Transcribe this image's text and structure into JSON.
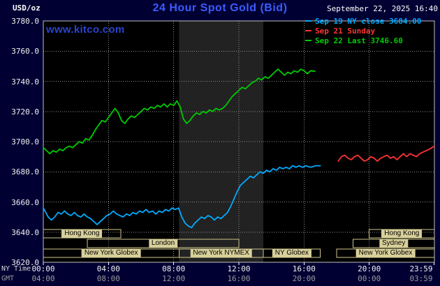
{
  "header": {
    "unit_label": "USD/oz",
    "title": "24 Hour Spot Gold (Bid)",
    "datetime": "September 22, 2025 16:40"
  },
  "watermark": "www.kitco.com",
  "colors": {
    "background": "#000033",
    "plot_bg": "#000000",
    "nymex_band": "#222222",
    "grid": "#8c8c8c",
    "border": "#c0c0c0",
    "session_box": "#cfc68b",
    "session_chip": "#d8d09a",
    "title": "#3b5cff",
    "watermark": "#2a43cf",
    "cyan_series": "#00aaff",
    "red_series": "#ff3333",
    "green_series": "#00cc00"
  },
  "legend": [
    {
      "id": "sep19",
      "label": "Sep 19 NY close 3684.00",
      "color": "#00aaff"
    },
    {
      "id": "sep21",
      "label": "Sep 21 Sunday",
      "color": "#ff3333"
    },
    {
      "id": "sep22",
      "label": "Sep 22 Last 3746.60",
      "color": "#00cc00"
    }
  ],
  "axes": {
    "x_label_primary": "NY Time",
    "x_label_secondary": "GMT",
    "x_ticks": [
      {
        "hour": 0,
        "label": "00:00",
        "gmt": "04:00"
      },
      {
        "hour": 4,
        "label": "04:00",
        "gmt": "08:00"
      },
      {
        "hour": 8,
        "label": "08:00",
        "gmt": "12:00"
      },
      {
        "hour": 12,
        "label": "12:00",
        "gmt": "16:00"
      },
      {
        "hour": 16,
        "label": "16:00",
        "gmt": "20:00"
      },
      {
        "hour": 20,
        "label": "20:00",
        "gmt": "00:00"
      },
      {
        "hour": 23.983,
        "label": "23:59",
        "gmt": "03:59"
      }
    ],
    "y_ticks": [
      {
        "value": 3620,
        "label": "3620.0"
      },
      {
        "value": 3640,
        "label": "3640.0"
      },
      {
        "value": 3660,
        "label": "3660.0"
      },
      {
        "value": 3680,
        "label": "3680.0"
      },
      {
        "value": 3700,
        "label": "3700.0"
      },
      {
        "value": 3720,
        "label": "3720.0"
      },
      {
        "value": 3740,
        "label": "3740.0"
      },
      {
        "value": 3760,
        "label": "3760.0"
      },
      {
        "value": 3780,
        "label": "3780.0"
      }
    ]
  },
  "sessions": [
    {
      "row": 0,
      "start_hour": 0,
      "end_hour": 4.75,
      "label": "Hong Kong"
    },
    {
      "row": 0,
      "start_hour": 20,
      "end_hour": 24,
      "label": "Hong Kong"
    },
    {
      "row": 1,
      "start_hour": 2.7,
      "end_hour": 12,
      "label": "London"
    },
    {
      "row": 1,
      "start_hour": 19,
      "end_hour": 24,
      "label": "Sydney"
    },
    {
      "row": 2,
      "start_hour": 0,
      "end_hour": 8.33,
      "label": "New York Globex"
    },
    {
      "row": 2,
      "start_hour": 8.33,
      "end_hour": 13.5,
      "label": "New York NYMEX"
    },
    {
      "row": 2,
      "start_hour": 13.5,
      "end_hour": 17,
      "label": "NY Globex"
    },
    {
      "row": 2,
      "start_hour": 18,
      "end_hour": 24,
      "label": "New York Globex"
    }
  ],
  "chart_data": {
    "type": "line",
    "title": "24 Hour Spot Gold (Bid)",
    "xlabel": "NY Time (hours, 00:00-23:59)",
    "ylabel": "USD/oz",
    "x_range_hours": [
      0,
      24
    ],
    "ylim": [
      3620,
      3780
    ],
    "grid": true,
    "legend_position": "top-right",
    "highlight_band_hours": [
      8.33,
      13.5
    ],
    "series": [
      {
        "id": "sep19",
        "name": "Sep 19 NY close 3684.00",
        "color": "#00aaff",
        "points": [
          [
            0.0,
            3656
          ],
          [
            0.15,
            3653
          ],
          [
            0.3,
            3650
          ],
          [
            0.5,
            3648
          ],
          [
            0.7,
            3650
          ],
          [
            0.9,
            3653
          ],
          [
            1.1,
            3652
          ],
          [
            1.3,
            3654
          ],
          [
            1.5,
            3652
          ],
          [
            1.7,
            3651
          ],
          [
            1.9,
            3653
          ],
          [
            2.1,
            3651
          ],
          [
            2.3,
            3650
          ],
          [
            2.5,
            3652
          ],
          [
            2.7,
            3650
          ],
          [
            2.9,
            3649
          ],
          [
            3.1,
            3647
          ],
          [
            3.3,
            3645
          ],
          [
            3.5,
            3647
          ],
          [
            3.7,
            3649
          ],
          [
            3.9,
            3651
          ],
          [
            4.1,
            3652
          ],
          [
            4.3,
            3654
          ],
          [
            4.5,
            3652
          ],
          [
            4.7,
            3651
          ],
          [
            4.9,
            3650
          ],
          [
            5.1,
            3652
          ],
          [
            5.3,
            3651
          ],
          [
            5.5,
            3653
          ],
          [
            5.7,
            3652
          ],
          [
            5.9,
            3654
          ],
          [
            6.1,
            3653
          ],
          [
            6.3,
            3655
          ],
          [
            6.5,
            3653
          ],
          [
            6.7,
            3654
          ],
          [
            6.9,
            3652
          ],
          [
            7.1,
            3654
          ],
          [
            7.3,
            3653
          ],
          [
            7.5,
            3655
          ],
          [
            7.7,
            3654
          ],
          [
            7.9,
            3656
          ],
          [
            8.1,
            3655
          ],
          [
            8.3,
            3656
          ],
          [
            8.5,
            3650
          ],
          [
            8.7,
            3646
          ],
          [
            8.9,
            3644
          ],
          [
            9.1,
            3643
          ],
          [
            9.3,
            3646
          ],
          [
            9.5,
            3648
          ],
          [
            9.7,
            3650
          ],
          [
            9.9,
            3649
          ],
          [
            10.1,
            3651
          ],
          [
            10.3,
            3650
          ],
          [
            10.5,
            3648
          ],
          [
            10.7,
            3650
          ],
          [
            10.9,
            3649
          ],
          [
            11.1,
            3651
          ],
          [
            11.3,
            3653
          ],
          [
            11.5,
            3657
          ],
          [
            11.7,
            3662
          ],
          [
            11.9,
            3667
          ],
          [
            12.1,
            3671
          ],
          [
            12.3,
            3673
          ],
          [
            12.5,
            3675
          ],
          [
            12.7,
            3677
          ],
          [
            12.9,
            3676
          ],
          [
            13.1,
            3678
          ],
          [
            13.3,
            3680
          ],
          [
            13.5,
            3679
          ],
          [
            13.7,
            3681
          ],
          [
            13.9,
            3680
          ],
          [
            14.1,
            3682
          ],
          [
            14.3,
            3681
          ],
          [
            14.5,
            3683
          ],
          [
            14.7,
            3682
          ],
          [
            14.9,
            3683
          ],
          [
            15.1,
            3682
          ],
          [
            15.3,
            3684
          ],
          [
            15.5,
            3683
          ],
          [
            15.7,
            3684
          ],
          [
            15.9,
            3683
          ],
          [
            16.1,
            3684
          ],
          [
            16.4,
            3683
          ],
          [
            16.7,
            3684
          ],
          [
            17.0,
            3684
          ]
        ]
      },
      {
        "id": "sep21",
        "name": "Sep 21 Sunday",
        "color": "#ff3333",
        "points": [
          [
            18.1,
            3687
          ],
          [
            18.3,
            3690
          ],
          [
            18.5,
            3691
          ],
          [
            18.7,
            3689
          ],
          [
            18.9,
            3688
          ],
          [
            19.1,
            3690
          ],
          [
            19.3,
            3691
          ],
          [
            19.5,
            3689
          ],
          [
            19.7,
            3687
          ],
          [
            19.9,
            3688
          ],
          [
            20.1,
            3690
          ],
          [
            20.3,
            3689
          ],
          [
            20.5,
            3687
          ],
          [
            20.7,
            3689
          ],
          [
            20.9,
            3690
          ],
          [
            21.1,
            3691
          ],
          [
            21.3,
            3689
          ],
          [
            21.5,
            3690
          ],
          [
            21.7,
            3688
          ],
          [
            21.9,
            3690
          ],
          [
            22.1,
            3692
          ],
          [
            22.3,
            3690
          ],
          [
            22.5,
            3692
          ],
          [
            22.7,
            3691
          ],
          [
            22.9,
            3690
          ],
          [
            23.1,
            3692
          ],
          [
            23.3,
            3693
          ],
          [
            23.5,
            3694
          ],
          [
            23.7,
            3695
          ],
          [
            23.85,
            3696
          ],
          [
            23.98,
            3697
          ]
        ]
      },
      {
        "id": "sep22",
        "name": "Sep 22 Last 3746.60",
        "color": "#00cc00",
        "points": [
          [
            0.0,
            3696
          ],
          [
            0.2,
            3694
          ],
          [
            0.4,
            3692
          ],
          [
            0.6,
            3694
          ],
          [
            0.8,
            3693
          ],
          [
            1.0,
            3695
          ],
          [
            1.2,
            3694
          ],
          [
            1.4,
            3696
          ],
          [
            1.6,
            3697
          ],
          [
            1.8,
            3696
          ],
          [
            2.0,
            3698
          ],
          [
            2.2,
            3700
          ],
          [
            2.4,
            3699
          ],
          [
            2.6,
            3702
          ],
          [
            2.8,
            3701
          ],
          [
            3.0,
            3704
          ],
          [
            3.2,
            3708
          ],
          [
            3.4,
            3711
          ],
          [
            3.6,
            3714
          ],
          [
            3.8,
            3713
          ],
          [
            4.0,
            3716
          ],
          [
            4.2,
            3719
          ],
          [
            4.4,
            3722
          ],
          [
            4.6,
            3719
          ],
          [
            4.8,
            3714
          ],
          [
            5.0,
            3712
          ],
          [
            5.2,
            3715
          ],
          [
            5.4,
            3717
          ],
          [
            5.6,
            3716
          ],
          [
            5.8,
            3718
          ],
          [
            6.0,
            3720
          ],
          [
            6.2,
            3722
          ],
          [
            6.4,
            3721
          ],
          [
            6.6,
            3723
          ],
          [
            6.8,
            3722
          ],
          [
            7.0,
            3724
          ],
          [
            7.2,
            3723
          ],
          [
            7.4,
            3725
          ],
          [
            7.6,
            3723
          ],
          [
            7.8,
            3725
          ],
          [
            8.0,
            3724
          ],
          [
            8.2,
            3727
          ],
          [
            8.4,
            3723
          ],
          [
            8.6,
            3715
          ],
          [
            8.8,
            3712
          ],
          [
            9.0,
            3714
          ],
          [
            9.2,
            3717
          ],
          [
            9.4,
            3719
          ],
          [
            9.6,
            3718
          ],
          [
            9.8,
            3720
          ],
          [
            10.0,
            3719
          ],
          [
            10.2,
            3721
          ],
          [
            10.4,
            3720
          ],
          [
            10.6,
            3722
          ],
          [
            10.8,
            3721
          ],
          [
            11.0,
            3722
          ],
          [
            11.2,
            3724
          ],
          [
            11.4,
            3727
          ],
          [
            11.6,
            3730
          ],
          [
            11.8,
            3732
          ],
          [
            12.0,
            3734
          ],
          [
            12.2,
            3736
          ],
          [
            12.4,
            3735
          ],
          [
            12.6,
            3737
          ],
          [
            12.8,
            3739
          ],
          [
            13.0,
            3740
          ],
          [
            13.2,
            3742
          ],
          [
            13.4,
            3741
          ],
          [
            13.6,
            3743
          ],
          [
            13.8,
            3742
          ],
          [
            14.0,
            3744
          ],
          [
            14.2,
            3746
          ],
          [
            14.4,
            3748
          ],
          [
            14.6,
            3746
          ],
          [
            14.8,
            3744
          ],
          [
            15.0,
            3746
          ],
          [
            15.2,
            3745
          ],
          [
            15.4,
            3747
          ],
          [
            15.6,
            3746
          ],
          [
            15.8,
            3748
          ],
          [
            16.0,
            3747
          ],
          [
            16.2,
            3745
          ],
          [
            16.4,
            3747
          ],
          [
            16.67,
            3746.6
          ]
        ]
      }
    ]
  }
}
